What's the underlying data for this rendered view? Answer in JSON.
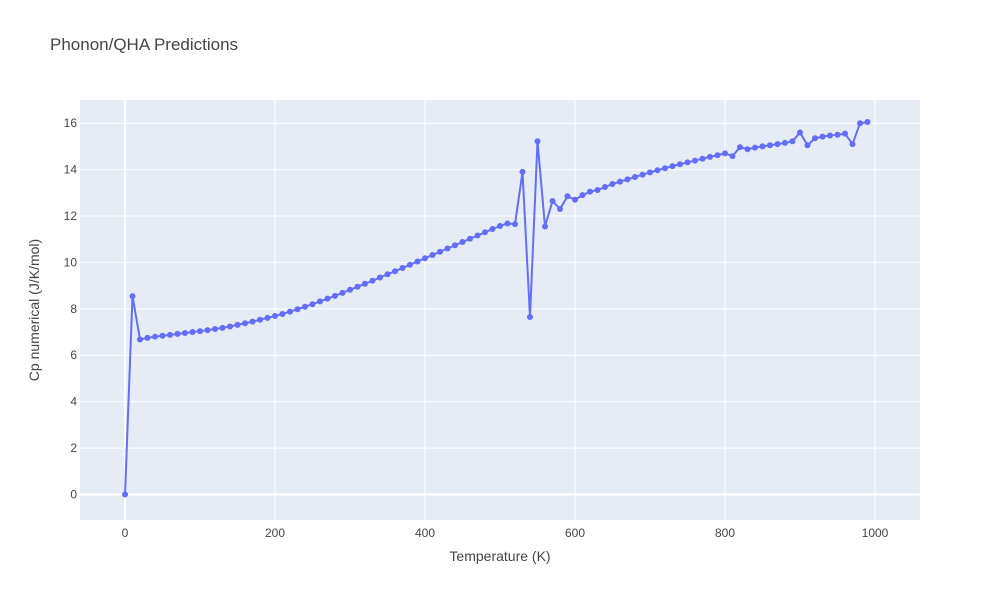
{
  "chart_data": {
    "type": "line",
    "title": "Phonon/QHA Predictions",
    "xlabel": "Temperature (K)",
    "ylabel": "Cp numerical (J/K/mol)",
    "xlim": [
      -60,
      1060
    ],
    "ylim": [
      -1.1,
      17.0
    ],
    "grid": true,
    "x_ticks": [
      0,
      200,
      400,
      600,
      800,
      1000
    ],
    "y_ticks": [
      0,
      2,
      4,
      6,
      8,
      10,
      12,
      14,
      16
    ],
    "colors": {
      "line": "#636efa",
      "plot_bg": "#e5ecf6",
      "grid": "#ffffff",
      "text": "#444444"
    },
    "series": [
      {
        "mode": "lines+markers",
        "x": [
          0,
          10,
          20,
          30,
          40,
          50,
          60,
          70,
          80,
          90,
          100,
          110,
          120,
          130,
          140,
          150,
          160,
          170,
          180,
          190,
          200,
          210,
          220,
          230,
          240,
          250,
          260,
          270,
          280,
          290,
          300,
          310,
          320,
          330,
          340,
          350,
          360,
          370,
          380,
          390,
          400,
          410,
          420,
          430,
          440,
          450,
          460,
          470,
          480,
          490,
          500,
          510,
          520,
          530,
          540,
          550,
          560,
          570,
          580,
          590,
          600,
          610,
          620,
          630,
          640,
          650,
          660,
          670,
          680,
          690,
          700,
          710,
          720,
          730,
          740,
          750,
          760,
          770,
          780,
          790,
          800,
          810,
          820,
          830,
          840,
          850,
          860,
          870,
          880,
          890,
          900,
          910,
          920,
          930,
          940,
          950,
          960,
          970,
          980,
          990
        ],
        "y": [
          0.0,
          8.55,
          6.68,
          6.75,
          6.8,
          6.84,
          6.88,
          6.92,
          6.96,
          7.0,
          7.04,
          7.08,
          7.13,
          7.18,
          7.24,
          7.31,
          7.38,
          7.45,
          7.53,
          7.61,
          7.69,
          7.78,
          7.88,
          7.98,
          8.09,
          8.2,
          8.32,
          8.44,
          8.56,
          8.69,
          8.82,
          8.95,
          9.08,
          9.21,
          9.35,
          9.49,
          9.62,
          9.76,
          9.9,
          10.04,
          10.18,
          10.32,
          10.46,
          10.6,
          10.74,
          10.88,
          11.02,
          11.16,
          11.3,
          11.44,
          11.57,
          11.68,
          11.65,
          13.9,
          7.65,
          15.22,
          11.55,
          12.65,
          12.3,
          12.85,
          12.7,
          12.9,
          13.05,
          13.12,
          13.25,
          13.38,
          13.48,
          13.58,
          13.68,
          13.78,
          13.88,
          13.97,
          14.06,
          14.15,
          14.23,
          14.31,
          14.39,
          14.47,
          14.55,
          14.62,
          14.7,
          14.58,
          14.97,
          14.88,
          14.95,
          15.0,
          15.05,
          15.1,
          15.15,
          15.22,
          15.6,
          15.05,
          15.35,
          15.42,
          15.47,
          15.5,
          15.55,
          15.1,
          16.0,
          16.05
        ]
      }
    ]
  }
}
